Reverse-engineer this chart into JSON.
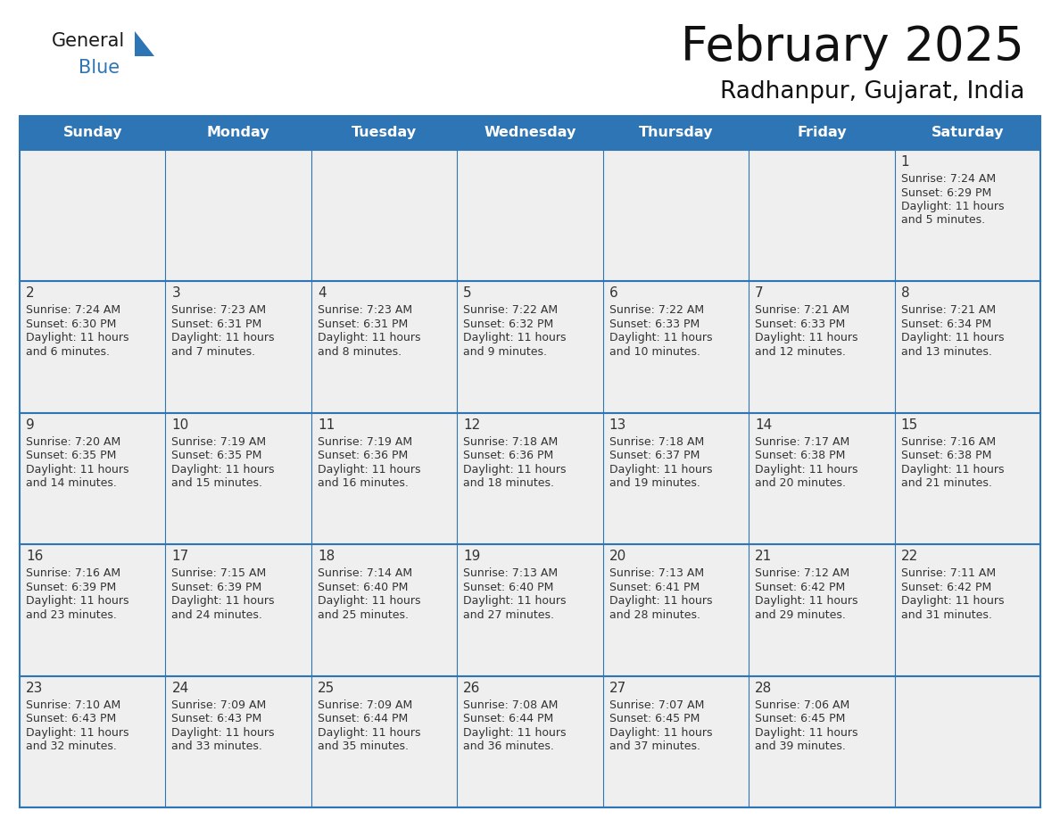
{
  "title": "February 2025",
  "subtitle": "Radhanpur, Gujarat, India",
  "header_color": "#2E75B6",
  "header_text_color": "#FFFFFF",
  "cell_bg_color": "#EFEFEF",
  "border_color": "#2E75B6",
  "day_number_color": "#333333",
  "text_color": "#333333",
  "days_of_week": [
    "Sunday",
    "Monday",
    "Tuesday",
    "Wednesday",
    "Thursday",
    "Friday",
    "Saturday"
  ],
  "calendar_data": [
    [
      null,
      null,
      null,
      null,
      null,
      null,
      {
        "day": "1",
        "sunrise": "7:24 AM",
        "sunset": "6:29 PM",
        "daylight": "11 hours",
        "daylight2": "and 5 minutes."
      }
    ],
    [
      {
        "day": "2",
        "sunrise": "7:24 AM",
        "sunset": "6:30 PM",
        "daylight": "11 hours",
        "daylight2": "and 6 minutes."
      },
      {
        "day": "3",
        "sunrise": "7:23 AM",
        "sunset": "6:31 PM",
        "daylight": "11 hours",
        "daylight2": "and 7 minutes."
      },
      {
        "day": "4",
        "sunrise": "7:23 AM",
        "sunset": "6:31 PM",
        "daylight": "11 hours",
        "daylight2": "and 8 minutes."
      },
      {
        "day": "5",
        "sunrise": "7:22 AM",
        "sunset": "6:32 PM",
        "daylight": "11 hours",
        "daylight2": "and 9 minutes."
      },
      {
        "day": "6",
        "sunrise": "7:22 AM",
        "sunset": "6:33 PM",
        "daylight": "11 hours",
        "daylight2": "and 10 minutes."
      },
      {
        "day": "7",
        "sunrise": "7:21 AM",
        "sunset": "6:33 PM",
        "daylight": "11 hours",
        "daylight2": "and 12 minutes."
      },
      {
        "day": "8",
        "sunrise": "7:21 AM",
        "sunset": "6:34 PM",
        "daylight": "11 hours",
        "daylight2": "and 13 minutes."
      }
    ],
    [
      {
        "day": "9",
        "sunrise": "7:20 AM",
        "sunset": "6:35 PM",
        "daylight": "11 hours",
        "daylight2": "and 14 minutes."
      },
      {
        "day": "10",
        "sunrise": "7:19 AM",
        "sunset": "6:35 PM",
        "daylight": "11 hours",
        "daylight2": "and 15 minutes."
      },
      {
        "day": "11",
        "sunrise": "7:19 AM",
        "sunset": "6:36 PM",
        "daylight": "11 hours",
        "daylight2": "and 16 minutes."
      },
      {
        "day": "12",
        "sunrise": "7:18 AM",
        "sunset": "6:36 PM",
        "daylight": "11 hours",
        "daylight2": "and 18 minutes."
      },
      {
        "day": "13",
        "sunrise": "7:18 AM",
        "sunset": "6:37 PM",
        "daylight": "11 hours",
        "daylight2": "and 19 minutes."
      },
      {
        "day": "14",
        "sunrise": "7:17 AM",
        "sunset": "6:38 PM",
        "daylight": "11 hours",
        "daylight2": "and 20 minutes."
      },
      {
        "day": "15",
        "sunrise": "7:16 AM",
        "sunset": "6:38 PM",
        "daylight": "11 hours",
        "daylight2": "and 21 minutes."
      }
    ],
    [
      {
        "day": "16",
        "sunrise": "7:16 AM",
        "sunset": "6:39 PM",
        "daylight": "11 hours",
        "daylight2": "and 23 minutes."
      },
      {
        "day": "17",
        "sunrise": "7:15 AM",
        "sunset": "6:39 PM",
        "daylight": "11 hours",
        "daylight2": "and 24 minutes."
      },
      {
        "day": "18",
        "sunrise": "7:14 AM",
        "sunset": "6:40 PM",
        "daylight": "11 hours",
        "daylight2": "and 25 minutes."
      },
      {
        "day": "19",
        "sunrise": "7:13 AM",
        "sunset": "6:40 PM",
        "daylight": "11 hours",
        "daylight2": "and 27 minutes."
      },
      {
        "day": "20",
        "sunrise": "7:13 AM",
        "sunset": "6:41 PM",
        "daylight": "11 hours",
        "daylight2": "and 28 minutes."
      },
      {
        "day": "21",
        "sunrise": "7:12 AM",
        "sunset": "6:42 PM",
        "daylight": "11 hours",
        "daylight2": "and 29 minutes."
      },
      {
        "day": "22",
        "sunrise": "7:11 AM",
        "sunset": "6:42 PM",
        "daylight": "11 hours",
        "daylight2": "and 31 minutes."
      }
    ],
    [
      {
        "day": "23",
        "sunrise": "7:10 AM",
        "sunset": "6:43 PM",
        "daylight": "11 hours",
        "daylight2": "and 32 minutes."
      },
      {
        "day": "24",
        "sunrise": "7:09 AM",
        "sunset": "6:43 PM",
        "daylight": "11 hours",
        "daylight2": "and 33 minutes."
      },
      {
        "day": "25",
        "sunrise": "7:09 AM",
        "sunset": "6:44 PM",
        "daylight": "11 hours",
        "daylight2": "and 35 minutes."
      },
      {
        "day": "26",
        "sunrise": "7:08 AM",
        "sunset": "6:44 PM",
        "daylight": "11 hours",
        "daylight2": "and 36 minutes."
      },
      {
        "day": "27",
        "sunrise": "7:07 AM",
        "sunset": "6:45 PM",
        "daylight": "11 hours",
        "daylight2": "and 37 minutes."
      },
      {
        "day": "28",
        "sunrise": "7:06 AM",
        "sunset": "6:45 PM",
        "daylight": "11 hours",
        "daylight2": "and 39 minutes."
      },
      null
    ]
  ],
  "logo_triangle_color": "#2E75B6",
  "logo_blue_color": "#2E75B6"
}
